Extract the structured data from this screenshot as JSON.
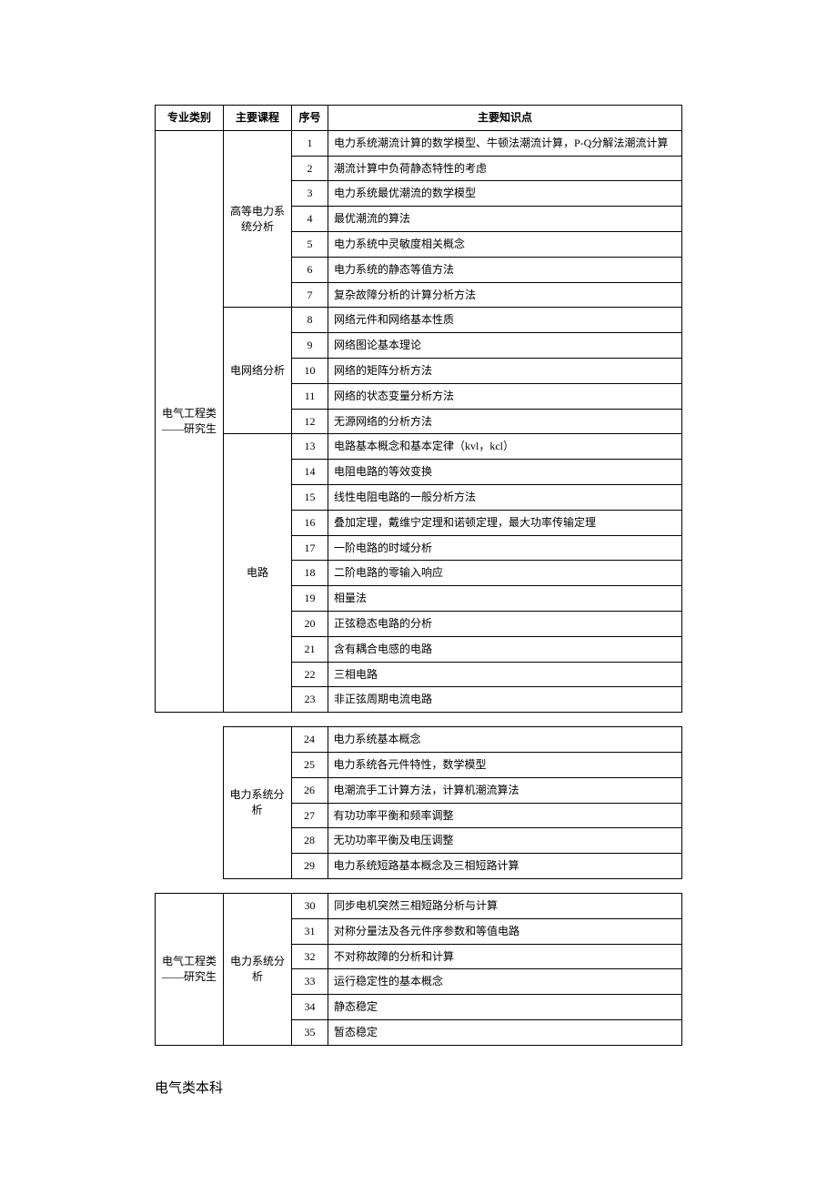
{
  "headers": {
    "category": "专业类别",
    "course": "主要课程",
    "seq": "序号",
    "topic": "主要知识点"
  },
  "section1": {
    "category": "电气工程类——研究生",
    "groups": [
      {
        "course": "高等电力系统分析",
        "rows": [
          {
            "seq": "1",
            "topic": "电力系统潮流计算的数学模型、牛顿法潮流计算，P-Q分解法潮流计算"
          },
          {
            "seq": "2",
            "topic": "潮流计算中负荷静态特性的考虑"
          },
          {
            "seq": "3",
            "topic": "电力系统最优潮流的数学模型"
          },
          {
            "seq": "4",
            "topic": "最优潮流的算法"
          },
          {
            "seq": "5",
            "topic": "电力系统中灵敏度相关概念"
          },
          {
            "seq": "6",
            "topic": "电力系统的静态等值方法"
          },
          {
            "seq": "7",
            "topic": "复杂故障分析的计算分析方法"
          }
        ]
      },
      {
        "course": "电网络分析",
        "rows": [
          {
            "seq": "8",
            "topic": "网络元件和网络基本性质"
          },
          {
            "seq": "9",
            "topic": "网络图论基本理论"
          },
          {
            "seq": "10",
            "topic": "网络的矩阵分析方法"
          },
          {
            "seq": "11",
            "topic": "网络的状态变量分析方法"
          },
          {
            "seq": "12",
            "topic": "无源网络的分析方法"
          }
        ]
      },
      {
        "course": "电路",
        "rows": [
          {
            "seq": "13",
            "topic": "电路基本概念和基本定律（kvl，kcl）"
          },
          {
            "seq": "14",
            "topic": "电阻电路的等效变换"
          },
          {
            "seq": "15",
            "topic": "线性电阻电路的一般分析方法"
          },
          {
            "seq": "16",
            "topic": "叠加定理，戴维宁定理和诺顿定理，最大功率传输定理"
          },
          {
            "seq": "17",
            "topic": "一阶电路的时域分析"
          },
          {
            "seq": "18",
            "topic": "二阶电路的零输入响应"
          },
          {
            "seq": "19",
            "topic": "相量法"
          },
          {
            "seq": "20",
            "topic": "正弦稳态电路的分析"
          },
          {
            "seq": "21",
            "topic": "含有耦合电感的电路"
          },
          {
            "seq": "22",
            "topic": "三相电路"
          },
          {
            "seq": "23",
            "topic": "非正弦周期电流电路"
          }
        ]
      }
    ]
  },
  "section2": {
    "course": "电力系统分析",
    "rows": [
      {
        "seq": "24",
        "topic": "电力系统基本概念"
      },
      {
        "seq": "25",
        "topic": "电力系统各元件特性，数学模型"
      },
      {
        "seq": "26",
        "topic": "电潮流手工计算方法，计算机潮流算法"
      },
      {
        "seq": "27",
        "topic": "有功功率平衡和频率调整"
      },
      {
        "seq": "28",
        "topic": "无功功率平衡及电压调整"
      },
      {
        "seq": "29",
        "topic": "电力系统短路基本概念及三相短路计算"
      }
    ]
  },
  "section3": {
    "category": "电气工程类——研究生",
    "course": "电力系统分析",
    "rows": [
      {
        "seq": "30",
        "topic": "同步电机突然三相短路分析与计算"
      },
      {
        "seq": "31",
        "topic": "对称分量法及各元件序参数和等值电路"
      },
      {
        "seq": "32",
        "topic": "不对称故障的分析和计算"
      },
      {
        "seq": "33",
        "topic": "运行稳定性的基本概念"
      },
      {
        "seq": "34",
        "topic": "静态稳定"
      },
      {
        "seq": "35",
        "topic": "暂态稳定"
      }
    ]
  },
  "footer": "电气类本科"
}
